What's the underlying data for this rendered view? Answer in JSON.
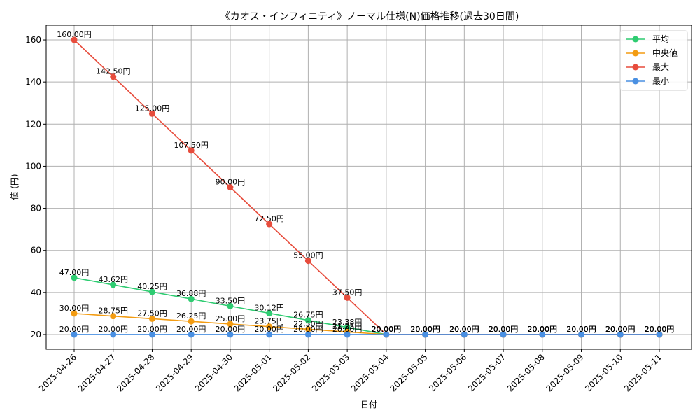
{
  "chart_data": {
    "type": "line",
    "title": "《カオス・インフィニティ》ノーマル仕様(N)価格推移(過去30日間)",
    "xlabel": "日付",
    "ylabel": "値 (円)",
    "ylim": [
      13,
      167
    ],
    "yticks": [
      20,
      40,
      60,
      80,
      100,
      120,
      140,
      160
    ],
    "grid": true,
    "legend_position": "top-right",
    "categories": [
      "2025-04-26",
      "2025-04-27",
      "2025-04-28",
      "2025-04-29",
      "2025-04-30",
      "2025-05-01",
      "2025-05-02",
      "2025-05-03",
      "2025-05-04",
      "2025-05-05",
      "2025-05-06",
      "2025-05-07",
      "2025-05-08",
      "2025-05-09",
      "2025-05-10",
      "2025-05-11"
    ],
    "series": [
      {
        "name": "平均",
        "color": "#2ecc71",
        "values": [
          47.0,
          43.62,
          40.25,
          36.88,
          33.5,
          30.12,
          26.75,
          23.38,
          20.0,
          20.0,
          20.0,
          20.0,
          20.0,
          20.0,
          20.0,
          20.0
        ],
        "labels": [
          "47.00円",
          "43.62円",
          "40.25円",
          "36.88円",
          "33.50円",
          "30.12円",
          "26.75円",
          "23.38円",
          "20.00円",
          "20.00円",
          "20.00円",
          "20.00円",
          "20.00円",
          "20.00円",
          "20.00円",
          "20.00円"
        ]
      },
      {
        "name": "中央値",
        "color": "#f39c12",
        "values": [
          30.0,
          28.75,
          27.5,
          26.25,
          25.0,
          23.75,
          22.5,
          21.25,
          20.0,
          20.0,
          20.0,
          20.0,
          20.0,
          20.0,
          20.0,
          20.0
        ],
        "labels": [
          "30.00円",
          "28.75円",
          "27.50円",
          "26.25円",
          "25.00円",
          "23.75円",
          "22.50円",
          "21.25円",
          "20.00円",
          "20.00円",
          "20.00円",
          "20.00円",
          "20.00円",
          "20.00円",
          "20.00円",
          "20.00円"
        ]
      },
      {
        "name": "最大",
        "color": "#e74c3c",
        "values": [
          160.0,
          142.5,
          125.0,
          107.5,
          90.0,
          72.5,
          55.0,
          37.5,
          20.0,
          20.0,
          20.0,
          20.0,
          20.0,
          20.0,
          20.0,
          20.0
        ],
        "labels": [
          "160.00円",
          "142.50円",
          "125.00円",
          "107.50円",
          "90.00円",
          "72.50円",
          "55.00円",
          "37.50円",
          "20.00円",
          "20.00円",
          "20.00円",
          "20.00円",
          "20.00円",
          "20.00円",
          "20.00円",
          "20.00円"
        ]
      },
      {
        "name": "最小",
        "color": "#4a90e2",
        "values": [
          20.0,
          20.0,
          20.0,
          20.0,
          20.0,
          20.0,
          20.0,
          20.0,
          20.0,
          20.0,
          20.0,
          20.0,
          20.0,
          20.0,
          20.0,
          20.0
        ],
        "labels": [
          "20.00円",
          "20.00円",
          "20.00円",
          "20.00円",
          "20.00円",
          "20.00円",
          "20.00円",
          "20.00円",
          "20.00円",
          "20.00円",
          "20.00円",
          "20.00円",
          "20.00円",
          "20.00円",
          "20.00円",
          "20.00円"
        ]
      }
    ]
  }
}
